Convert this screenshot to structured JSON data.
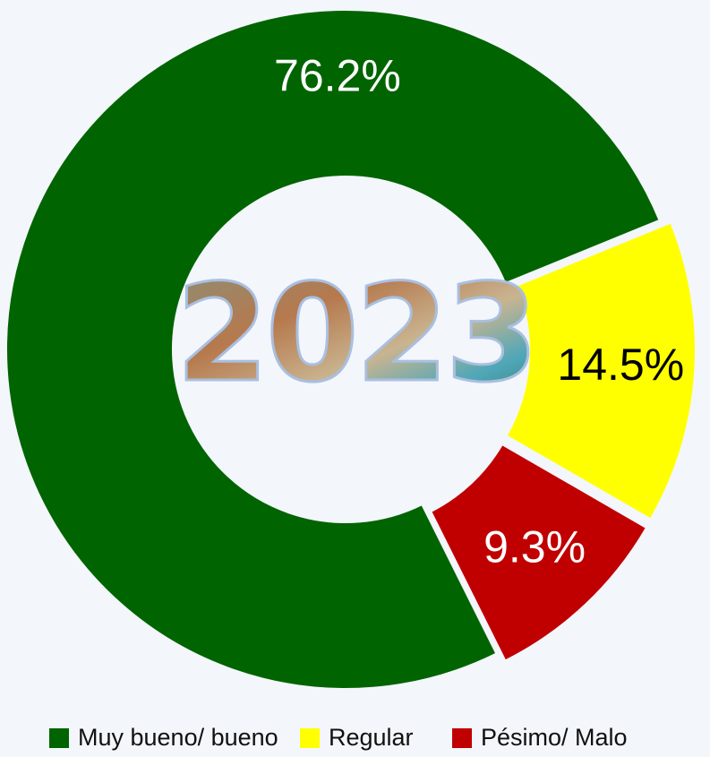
{
  "chart_data": {
    "type": "donut",
    "center_label": "2023",
    "categories": [
      "Muy bueno/ bueno",
      "Regular",
      "Pésimo/ Malo"
    ],
    "values": [
      76.2,
      14.5,
      9.3
    ],
    "value_labels": [
      "76.2%",
      "14.5%",
      "9.3%"
    ],
    "colors": [
      "#006400",
      "#ffff00",
      "#c00000"
    ],
    "label_colors": [
      "#ffffff",
      "#000000",
      "#ffffff"
    ],
    "legend": "bottom"
  }
}
